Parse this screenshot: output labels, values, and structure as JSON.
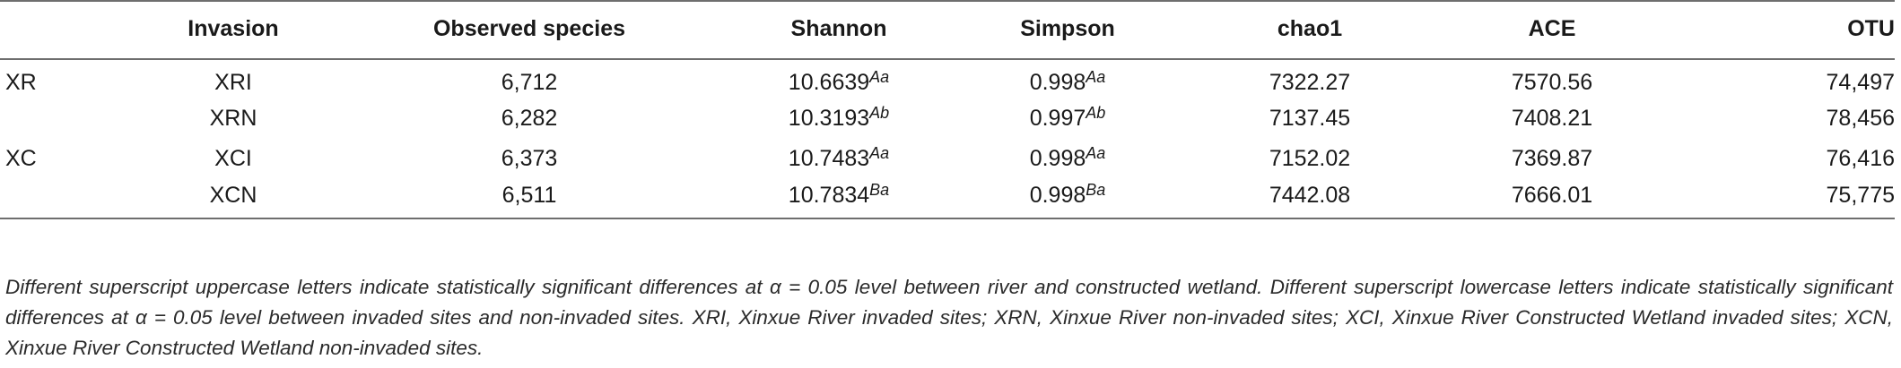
{
  "table": {
    "headers": [
      "",
      "Invasion",
      "Observed species",
      "Shannon",
      "Simpson",
      "chao1",
      "ACE",
      "OTU"
    ],
    "rows": [
      {
        "group": "XR",
        "invasion": "XRI",
        "observed": "6,712",
        "shannon": "10.6639",
        "shannon_sup": "Aa",
        "simpson": "0.998",
        "simpson_sup": "Aa",
        "chao1": "7322.27",
        "ace": "7570.56",
        "otu": "74,497"
      },
      {
        "group": "",
        "invasion": "XRN",
        "observed": "6,282",
        "shannon": "10.3193",
        "shannon_sup": "Ab",
        "simpson": "0.997",
        "simpson_sup": "Ab",
        "chao1": "7137.45",
        "ace": "7408.21",
        "otu": "78,456"
      },
      {
        "group": "XC",
        "invasion": "XCI",
        "observed": "6,373",
        "shannon": "10.7483",
        "shannon_sup": "Aa",
        "simpson": "0.998",
        "simpson_sup": "Aa",
        "chao1": "7152.02",
        "ace": "7369.87",
        "otu": "76,416"
      },
      {
        "group": "",
        "invasion": "XCN",
        "observed": "6,511",
        "shannon": "10.7834",
        "shannon_sup": "Ba",
        "simpson": "0.998",
        "simpson_sup": "Ba",
        "chao1": "7442.08",
        "ace": "7666.01",
        "otu": "75,775"
      }
    ]
  },
  "footnote": "Different superscript uppercase letters indicate statistically significant differences at α = 0.05 level between river and constructed wetland. Different superscript lowercase letters indicate statistically significant differences at α = 0.05 level between invaded sites and non-invaded sites. XRI, Xinxue River invaded sites; XRN, Xinxue River non-invaded sites; XCI, Xinxue River Constructed Wetland invaded sites; XCN, Xinxue River Constructed Wetland non-invaded sites."
}
